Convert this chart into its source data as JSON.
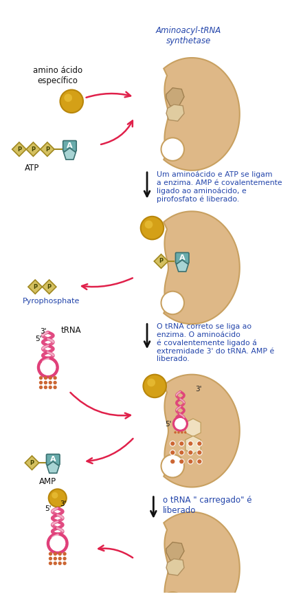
{
  "bg_color": "#ffffff",
  "enzyme_color": "#deb887",
  "enzyme_edge": "#c8a060",
  "amino_color": "#d4a017",
  "amino_edge": "#b8860b",
  "atp_diamond_color": "#d4c060",
  "atp_diamond_edge": "#a08820",
  "atp_text_color": "#333300",
  "nucleoside_color": "#6aacac",
  "nucleoside_edge": "#3a7070",
  "tRNA_helix_color": "#e0407a",
  "tRNA_dot_color": "#cc6633",
  "arrow_color": "#e0204a",
  "black_arrow_color": "#111111",
  "text_color": "#2244aa",
  "label_color": "#111111",
  "step1_text": "Um aminoácido e ATP se ligam\na enzima. AMP é covalentemente\nligado ao aminoácido, e\npirofosfato é liberado.",
  "step2_text": "O tRNA correto se liga ao\nenzima. O aminoácido\né covalentemente ligado á\nextremidade 3' do tRNA. AMP é\nliberado.",
  "step3_text": "o tRNA \" carregado\" é\nliberado",
  "label_aa": "amino ácido\nespecífico",
  "label_enzyme": "Aminoacyl-tRNA\nsynthetase",
  "label_atp": "ATP",
  "label_pp": "Pyrophosphate",
  "label_amp": "AMP",
  "label_trna": "tRNA"
}
